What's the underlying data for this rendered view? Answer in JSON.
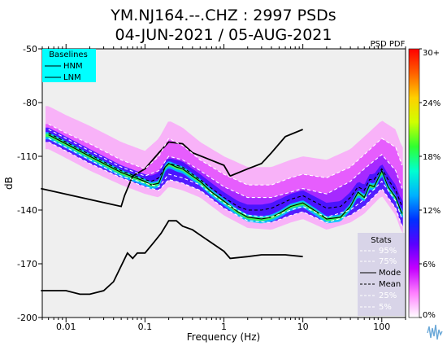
{
  "title_line1": "YM.NJ164.--.CHZ : 2997 PSDs",
  "title_line2": "04-JUN-2021 / 05-AUG-2021",
  "chart_data": {
    "type": "heatmap",
    "subtype": "psd-pdf",
    "xlabel": "Frequency (Hz)",
    "ylabel": "dB",
    "x_scale": "log",
    "xlim": [
      0.005,
      200
    ],
    "ylim": [
      -200,
      -50
    ],
    "x_ticks": [
      0.01,
      0.1,
      1,
      10,
      100
    ],
    "x_tick_labels": [
      "0.01",
      "0.1",
      "1",
      "10",
      "100"
    ],
    "y_ticks": [
      -200,
      -170,
      -140,
      -110,
      -80,
      -50
    ],
    "y_tick_labels": [
      "-200",
      "-170",
      "-140",
      "-110",
      "-80",
      "-50"
    ],
    "colorbar": {
      "title": "PSD PDF",
      "ticks": [
        0,
        6,
        12,
        18,
        24,
        30
      ],
      "tick_labels": [
        "0%",
        "6%",
        "12%",
        "18%",
        "24%",
        "30+"
      ],
      "colormap": [
        "#ffffff",
        "#ff80ff",
        "#c400ff",
        "#5a00ff",
        "#0030ff",
        "#00b0ff",
        "#00ffd0",
        "#30ff30",
        "#d0ff00",
        "#ffd000",
        "#ff6000",
        "#ff0000"
      ]
    },
    "baselines_legend": {
      "title": "Baselines",
      "items": [
        "HNM",
        "LNM"
      ],
      "background": "#00ffff"
    },
    "stats_legend": {
      "title": "Stats",
      "items": [
        "95%",
        "75%",
        "Mode",
        "Mean",
        "25%",
        "5%"
      ],
      "background": "#d8d4e8"
    },
    "series": [
      {
        "name": "HNM",
        "color": "#000000",
        "style": "solid",
        "x": [
          0.0048,
          0.05,
          0.055,
          0.07,
          0.1,
          0.15,
          0.2,
          0.3,
          0.4,
          1,
          1.2,
          2,
          3,
          4,
          6,
          10
        ],
        "y": [
          -128,
          -138,
          -132,
          -121,
          -117,
          -108,
          -102,
          -103,
          -108,
          -115,
          -121,
          -117,
          -114,
          -108,
          -99,
          -95
        ]
      },
      {
        "name": "LNM",
        "color": "#000000",
        "style": "solid",
        "x": [
          0.0048,
          0.01,
          0.015,
          0.02,
          0.03,
          0.04,
          0.06,
          0.07,
          0.08,
          0.1,
          0.13,
          0.16,
          0.2,
          0.25,
          0.3,
          0.4,
          0.5,
          1,
          1.2,
          2,
          3,
          4,
          6,
          10
        ],
        "y": [
          -185,
          -185,
          -187,
          -187,
          -185,
          -180,
          -164,
          -167,
          -164,
          -164,
          -158,
          -153,
          -146,
          -146,
          -149,
          -151,
          -154,
          -163,
          -167,
          -166,
          -165,
          -165,
          -165,
          -166
        ]
      },
      {
        "name": "Mode",
        "color": "#000000",
        "style": "solid",
        "x": [
          0.006,
          0.01,
          0.02,
          0.05,
          0.1,
          0.12,
          0.15,
          0.18,
          0.2,
          0.25,
          0.3,
          0.4,
          0.5,
          0.7,
          1,
          1.5,
          2,
          3,
          4,
          5,
          7,
          10,
          15,
          20,
          30,
          40,
          50,
          60,
          70,
          80,
          100,
          120,
          150,
          180
        ],
        "y": [
          -98,
          -103,
          -110,
          -119,
          -124,
          -126,
          -125,
          -116,
          -114,
          -116,
          -117,
          -121,
          -124,
          -130,
          -135,
          -141,
          -144,
          -145,
          -144,
          -142,
          -138,
          -136,
          -141,
          -145,
          -144,
          -138,
          -130,
          -133,
          -126,
          -127,
          -118,
          -127,
          -133,
          -142
        ]
      },
      {
        "name": "Mean",
        "color": "#000000",
        "style": "dashed",
        "x": [
          0.006,
          0.01,
          0.02,
          0.05,
          0.1,
          0.12,
          0.15,
          0.18,
          0.2,
          0.25,
          0.3,
          0.4,
          0.5,
          0.7,
          1,
          1.5,
          2,
          3,
          4,
          5,
          7,
          10,
          15,
          20,
          30,
          40,
          50,
          60,
          70,
          80,
          100,
          120,
          150,
          180
        ],
        "y": [
          -97,
          -102,
          -109,
          -118,
          -123,
          -124,
          -122,
          -116,
          -114,
          -115,
          -116,
          -120,
          -123,
          -128,
          -133,
          -138,
          -140,
          -140,
          -139,
          -137,
          -134,
          -132,
          -136,
          -139,
          -138,
          -133,
          -127,
          -129,
          -123,
          -123,
          -117,
          -123,
          -129,
          -138
        ]
      },
      {
        "name": "95%",
        "color": "#ffffff",
        "style": "dashed",
        "x": [
          0.006,
          0.01,
          0.02,
          0.05,
          0.1,
          0.15,
          0.2,
          0.3,
          0.5,
          1,
          2,
          4,
          7,
          10,
          20,
          40,
          60,
          100,
          150,
          180
        ],
        "y": [
          -92,
          -97,
          -103,
          -112,
          -117,
          -110,
          -100,
          -104,
          -112,
          -120,
          -126,
          -126,
          -122,
          -120,
          -122,
          -116,
          -109,
          -100,
          -105,
          -115
        ]
      },
      {
        "name": "75%",
        "color": "#ffffff",
        "style": "dashed",
        "x": [
          0.006,
          0.01,
          0.02,
          0.05,
          0.1,
          0.15,
          0.2,
          0.3,
          0.5,
          1,
          2,
          4,
          7,
          10,
          20,
          40,
          60,
          100,
          150,
          180
        ],
        "y": [
          -95,
          -100,
          -107,
          -116,
          -121,
          -118,
          -110,
          -112,
          -118,
          -127,
          -133,
          -133,
          -130,
          -128,
          -131,
          -124,
          -117,
          -109,
          -118,
          -128
        ]
      },
      {
        "name": "25%",
        "color": "#ffffff",
        "style": "dashed",
        "x": [
          0.006,
          0.01,
          0.02,
          0.05,
          0.1,
          0.15,
          0.2,
          0.3,
          0.5,
          1,
          2,
          4,
          7,
          10,
          20,
          40,
          60,
          100,
          150,
          180
        ],
        "y": [
          -100,
          -105,
          -112,
          -121,
          -125,
          -127,
          -120,
          -122,
          -126,
          -136,
          -143,
          -144,
          -140,
          -138,
          -144,
          -140,
          -134,
          -124,
          -135,
          -145
        ]
      },
      {
        "name": "5%",
        "color": "#ffffff",
        "style": "dashed",
        "x": [
          0.006,
          0.01,
          0.02,
          0.05,
          0.1,
          0.15,
          0.2,
          0.3,
          0.5,
          1,
          2,
          4,
          7,
          10,
          20,
          40,
          60,
          100,
          150,
          180
        ],
        "y": [
          -102,
          -107,
          -114,
          -122,
          -127,
          -129,
          -123,
          -125,
          -129,
          -139,
          -146,
          -147,
          -143,
          -141,
          -147,
          -143,
          -138,
          -128,
          -139,
          -149
        ]
      }
    ]
  }
}
